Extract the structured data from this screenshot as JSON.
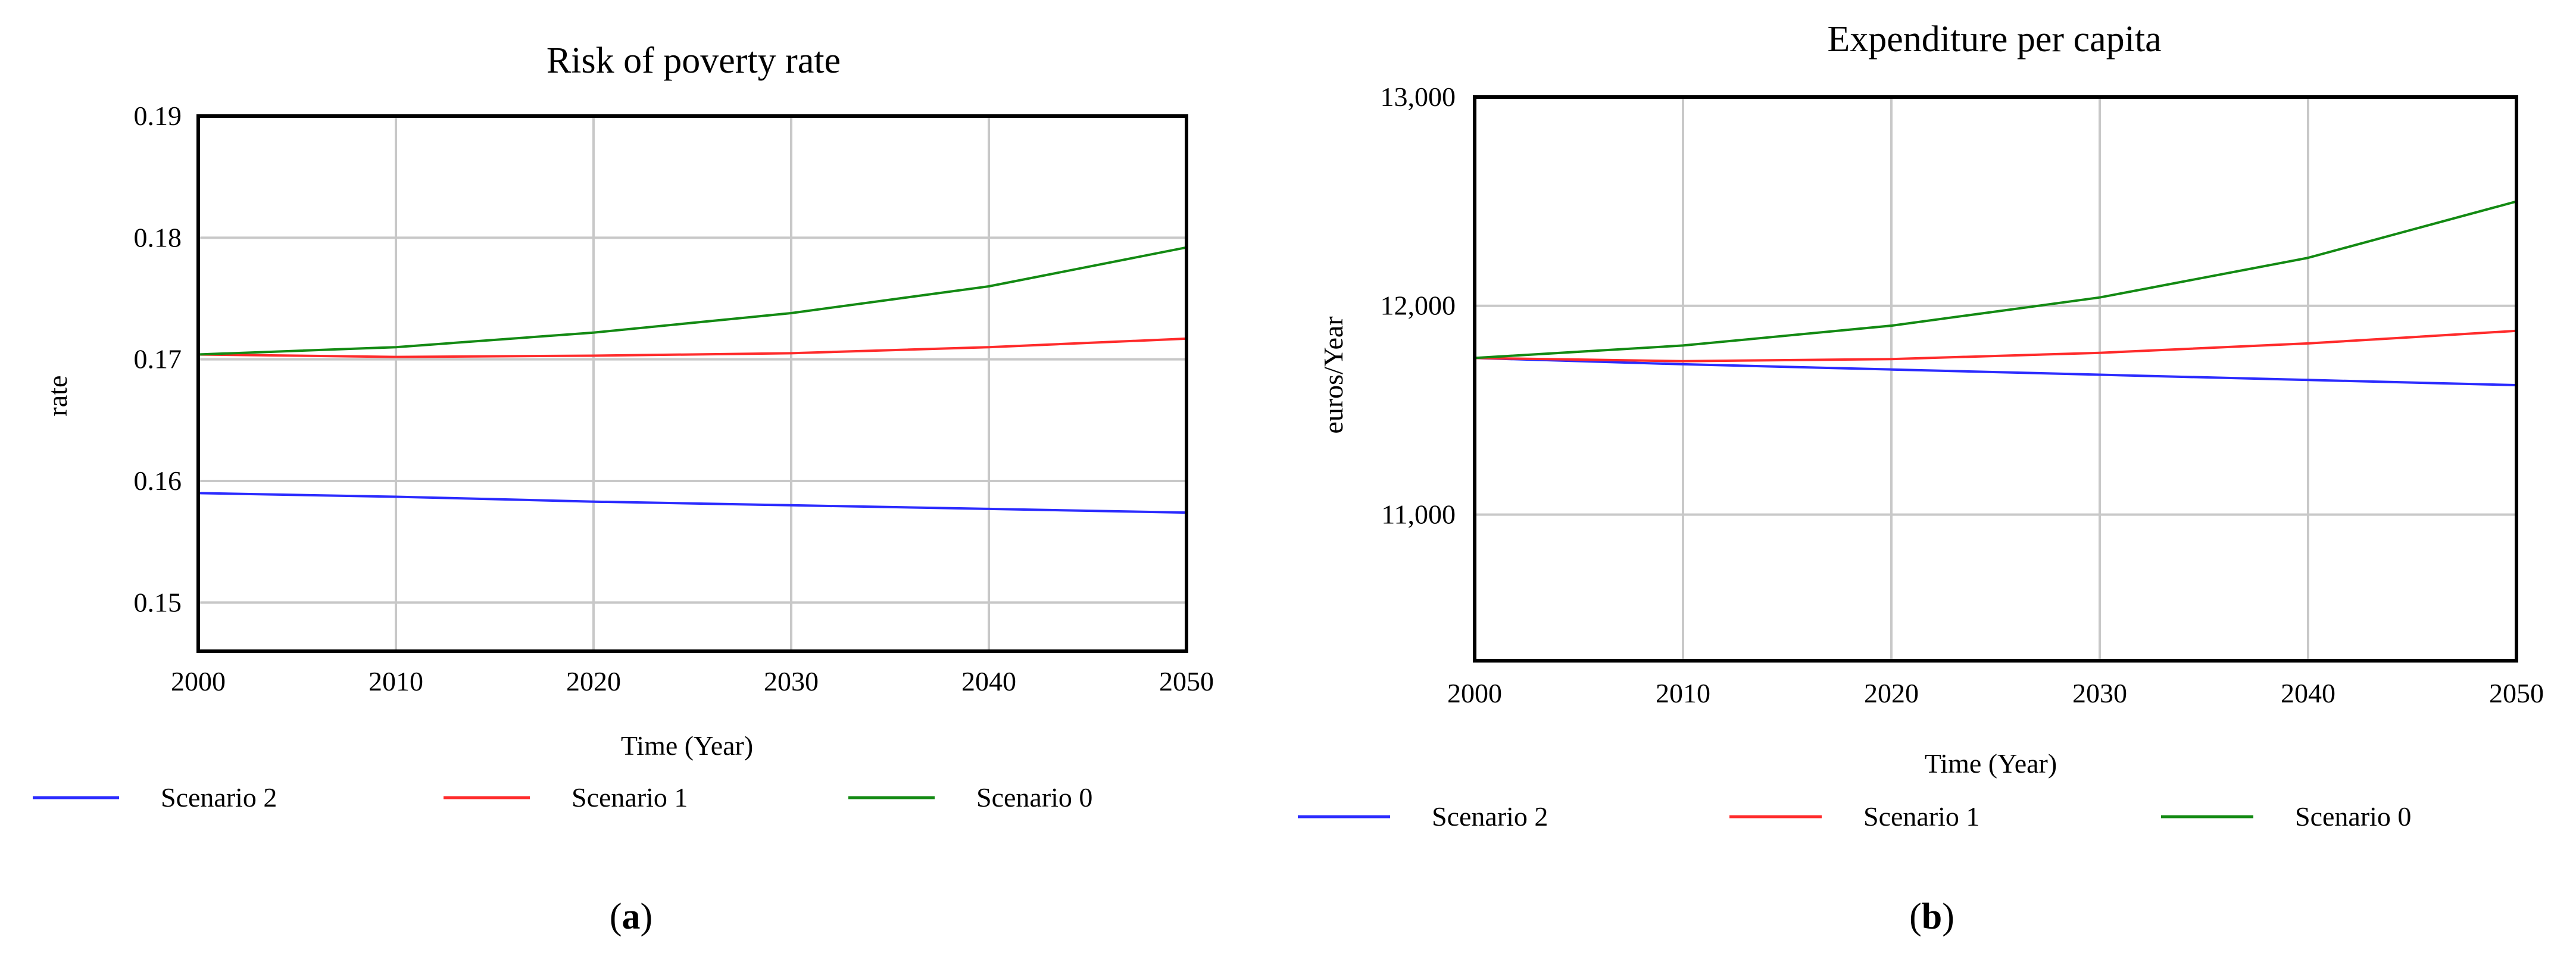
{
  "chart_data": [
    {
      "type": "line",
      "panel_label": "a",
      "title": "Risk of poverty rate",
      "xlabel": "Time (Year)",
      "ylabel": "rate",
      "xlim": [
        2000,
        2050
      ],
      "ylim": [
        0.146,
        0.19
      ],
      "xticks": [
        2000,
        2010,
        2020,
        2030,
        2040,
        2050
      ],
      "yticks": [
        0.15,
        0.16,
        0.17,
        0.18,
        0.19
      ],
      "x_tick_labels": [
        "2000",
        "2010",
        "2020",
        "2030",
        "2040",
        "2050"
      ],
      "y_tick_labels": [
        "0.15",
        "0.16",
        "0.17",
        "0.18",
        "0.19"
      ],
      "grid": true,
      "legend_position": "bottom",
      "x": [
        2000,
        2010,
        2020,
        2030,
        2040,
        2050
      ],
      "series": [
        {
          "name": "Scenario 2",
          "color": "#2b2bff",
          "values": [
            0.159,
            0.1587,
            0.1583,
            0.158,
            0.1577,
            0.1574
          ]
        },
        {
          "name": "Scenario 1",
          "color": "#ff2b2b",
          "values": [
            0.1704,
            0.1702,
            0.1703,
            0.1705,
            0.171,
            0.1717
          ]
        },
        {
          "name": "Scenario 0",
          "color": "#138a13",
          "values": [
            0.1704,
            0.171,
            0.1722,
            0.1738,
            0.176,
            0.1792
          ]
        }
      ]
    },
    {
      "type": "line",
      "panel_label": "b",
      "title": "Expenditure per capita",
      "xlabel": "Time (Year)",
      "ylabel": "euros/Year",
      "xlim": [
        2000,
        2050
      ],
      "ylim": [
        10300,
        13000
      ],
      "xticks": [
        2000,
        2010,
        2020,
        2030,
        2040,
        2050
      ],
      "yticks": [
        11000,
        12000,
        13000
      ],
      "x_tick_labels": [
        "2000",
        "2010",
        "2020",
        "2030",
        "2040",
        "2050"
      ],
      "y_tick_labels": [
        "11,000",
        "12,000",
        "13,000"
      ],
      "grid": true,
      "legend_position": "bottom",
      "x": [
        2000,
        2010,
        2020,
        2030,
        2040,
        2050
      ],
      "series": [
        {
          "name": "Scenario 2",
          "color": "#2b2bff",
          "values": [
            11750,
            11720,
            11695,
            11670,
            11645,
            11620
          ]
        },
        {
          "name": "Scenario 1",
          "color": "#ff2b2b",
          "values": [
            11750,
            11735,
            11745,
            11775,
            11820,
            11880
          ]
        },
        {
          "name": "Scenario 0",
          "color": "#138a13",
          "values": [
            11750,
            11810,
            11905,
            12040,
            12230,
            12500
          ]
        }
      ]
    }
  ]
}
